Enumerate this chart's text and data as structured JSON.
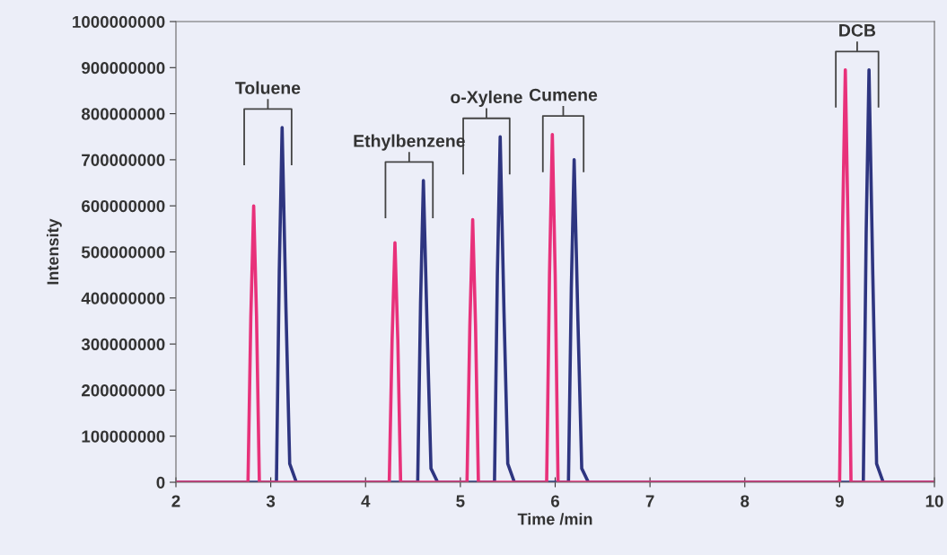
{
  "chart_data": {
    "type": "line",
    "xlabel": "Time /min",
    "ylabel": "Intensity",
    "xlim": [
      2,
      10
    ],
    "xticks": [
      2,
      3,
      4,
      5,
      6,
      7,
      8,
      9,
      10
    ],
    "ylim": [
      0,
      1000000000
    ],
    "yticks": [
      0,
      100000000,
      200000000,
      300000000,
      400000000,
      500000000,
      600000000,
      700000000,
      800000000,
      900000000,
      1000000000
    ],
    "grid": false,
    "marker": "none",
    "line_style": "solid",
    "series": [
      {
        "color": "#2e3580",
        "x": [
          2,
          3.06,
          3.09,
          3.12,
          3.16,
          3.2,
          3.27,
          4.55,
          4.58,
          4.61,
          4.65,
          4.69,
          4.76,
          5.36,
          5.39,
          5.42,
          5.46,
          5.5,
          5.57,
          6.14,
          6.17,
          6.2,
          6.24,
          6.28,
          6.35,
          9.25,
          9.28,
          9.31,
          9.35,
          9.39,
          9.46,
          10
        ],
        "values": [
          0,
          0,
          460000000,
          770000000,
          380000000,
          40000000,
          0,
          0,
          390000000,
          655000000,
          330000000,
          30000000,
          0,
          0,
          450000000,
          750000000,
          370000000,
          40000000,
          0,
          0,
          420000000,
          700000000,
          350000000,
          30000000,
          0,
          0,
          540000000,
          895000000,
          450000000,
          40000000,
          0,
          0
        ]
      },
      {
        "color": "#e8317a",
        "x": [
          2,
          2.76,
          2.79,
          2.82,
          2.85,
          2.88,
          4.25,
          4.28,
          4.31,
          4.34,
          4.37,
          5.07,
          5.1,
          5.13,
          5.16,
          5.19,
          5.91,
          5.94,
          5.97,
          6.0,
          6.03,
          9.0,
          9.03,
          9.06,
          9.09,
          9.12,
          10
        ],
        "values": [
          0,
          0,
          360000000,
          600000000,
          360000000,
          0,
          0,
          310000000,
          520000000,
          310000000,
          0,
          0,
          340000000,
          570000000,
          340000000,
          0,
          0,
          450000000,
          755000000,
          450000000,
          0,
          0,
          540000000,
          895000000,
          540000000,
          0,
          0
        ]
      }
    ],
    "annotations": [
      "Toluene",
      "Ethylbenzene",
      "o-Xylene",
      "Cumene",
      "DCB"
    ]
  }
}
